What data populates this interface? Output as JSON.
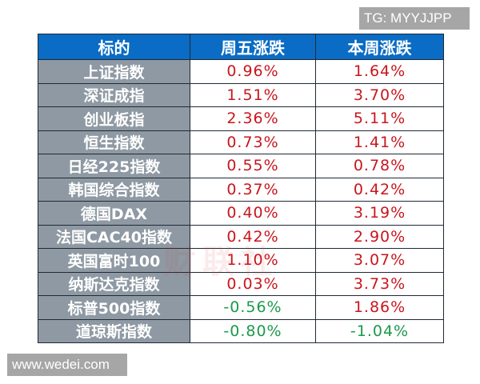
{
  "watermark_top": "TG: MYYJJPP",
  "watermark_bottom": "www.wedei.com",
  "background_watermark": "财联社",
  "colors": {
    "header_bg": "#0a6cc4",
    "name_bg": "#8e99a3",
    "up": "#c8161d",
    "down": "#1a9a4a"
  },
  "table": {
    "headers": [
      "标的",
      "周五涨跌",
      "本周涨跌"
    ],
    "rows": [
      {
        "name": "上证指数",
        "friday": "0.96%",
        "week": "1.64%",
        "friday_dir": "up",
        "week_dir": "up"
      },
      {
        "name": "深证成指",
        "friday": "1.51%",
        "week": "3.70%",
        "friday_dir": "up",
        "week_dir": "up"
      },
      {
        "name": "创业板指",
        "friday": "2.36%",
        "week": "5.11%",
        "friday_dir": "up",
        "week_dir": "up"
      },
      {
        "name": "恒生指数",
        "friday": "0.73%",
        "week": "1.41%",
        "friday_dir": "up",
        "week_dir": "up"
      },
      {
        "name": "日经225指数",
        "friday": "0.55%",
        "week": "0.78%",
        "friday_dir": "up",
        "week_dir": "up"
      },
      {
        "name": "韩国综合指数",
        "friday": "0.37%",
        "week": "0.42%",
        "friday_dir": "up",
        "week_dir": "up"
      },
      {
        "name": "德国DAX",
        "friday": "0.40%",
        "week": "3.19%",
        "friday_dir": "up",
        "week_dir": "up"
      },
      {
        "name": "法国CAC40指数",
        "friday": "0.42%",
        "week": "2.90%",
        "friday_dir": "up",
        "week_dir": "up"
      },
      {
        "name": "英国富时100",
        "friday": "1.10%",
        "week": "3.07%",
        "friday_dir": "up",
        "week_dir": "up"
      },
      {
        "name": "纳斯达克指数",
        "friday": "0.03%",
        "week": "3.73%",
        "friday_dir": "up",
        "week_dir": "up"
      },
      {
        "name": "标普500指数",
        "friday": "-0.56%",
        "week": "1.86%",
        "friday_dir": "down",
        "week_dir": "up"
      },
      {
        "name": "道琼斯指数",
        "friday": "-0.80%",
        "week": "-1.04%",
        "friday_dir": "down",
        "week_dir": "down"
      }
    ]
  }
}
